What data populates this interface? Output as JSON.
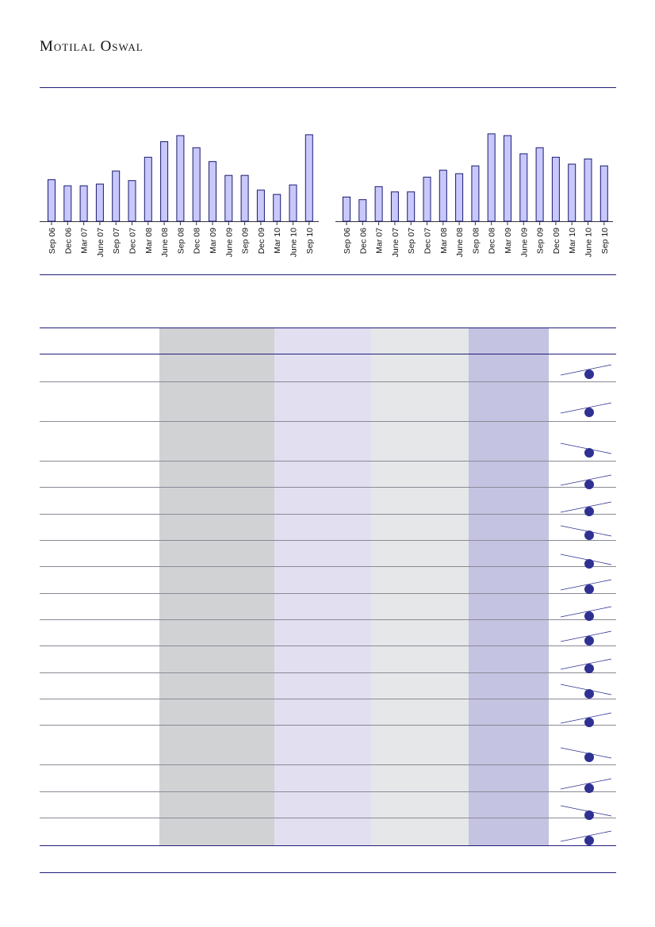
{
  "header": {
    "brand": "Motilal Oswal"
  },
  "colors": {
    "bar_fill": "#c8c8fb",
    "bar_stroke": "#1a1a73",
    "rule": "#1e1e7a",
    "marker": "#2e3192"
  },
  "chart_data": [
    {
      "type": "bar",
      "categories": [
        "Sep 06",
        "Dec 06",
        "Mar 07",
        "June 07",
        "Sep 07",
        "Dec 07",
        "Mar 08",
        "June 08",
        "Sep 08",
        "Dec 08",
        "Mar 09",
        "June 09",
        "Sep 09",
        "Dec 09",
        "Mar 10",
        "June 10",
        "Sep 10"
      ],
      "values": [
        48,
        41,
        41,
        43,
        58,
        47,
        74,
        92,
        99,
        85,
        69,
        53,
        53,
        36,
        31,
        42,
        100
      ],
      "ylim": [
        0,
        110
      ]
    },
    {
      "type": "bar",
      "categories": [
        "Sep 06",
        "Dec 06",
        "Mar 07",
        "June 07",
        "Sep 07",
        "Dec 07",
        "Mar 08",
        "June 08",
        "Sep 08",
        "Dec 08",
        "Mar 09",
        "June 09",
        "Sep 09",
        "Dec 09",
        "Mar 10",
        "June 10",
        "Sep 10"
      ],
      "values": [
        28,
        25,
        40,
        34,
        34,
        51,
        59,
        55,
        64,
        101,
        99,
        78,
        85,
        74,
        66,
        72,
        64
      ],
      "ylim": [
        0,
        110
      ]
    }
  ],
  "indicators": [
    {
      "direction": "up"
    },
    {
      "direction": "up"
    },
    {
      "direction": "down"
    },
    {
      "direction": "up"
    },
    {
      "direction": "up"
    },
    {
      "direction": "down"
    },
    {
      "direction": "down"
    },
    {
      "direction": "up"
    },
    {
      "direction": "up"
    },
    {
      "direction": "up"
    },
    {
      "direction": "up"
    },
    {
      "direction": "down"
    },
    {
      "direction": "up"
    },
    {
      "direction": "down"
    },
    {
      "direction": "up"
    },
    {
      "direction": "down"
    },
    {
      "direction": "up"
    }
  ]
}
